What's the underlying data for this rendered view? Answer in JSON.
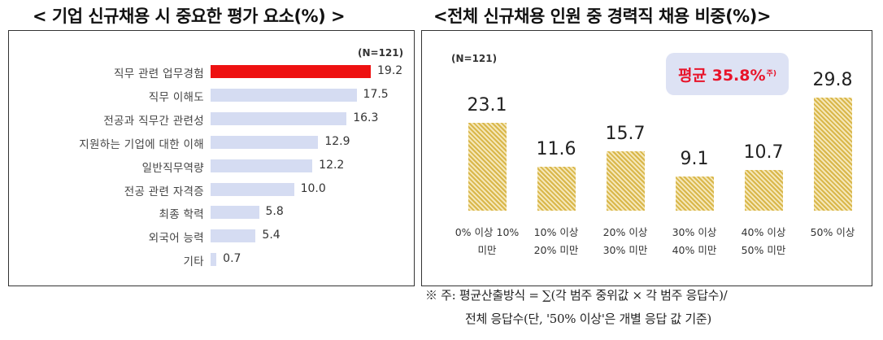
{
  "left_title": "< 기업 신규채용 시 중요한 평가 요소(%) >",
  "right_title": "<전체 신규채용 인원 중 경력직 채용 비중(%)>",
  "footnote": {
    "line1": "※ 주: 평균산출방식 = ∑(각 범주 중위값 × 각 범주 응답수)/",
    "line2": "전체 응답수(단, '50% 이상'은 개별 응답 값 기준)"
  },
  "chart_data": [
    {
      "type": "bar",
      "orientation": "horizontal",
      "title": "< 기업 신규채용 시 중요한 평가 요소(%) >",
      "note": "(N=121)",
      "categories": [
        "직무 관련 업무경험",
        "직무 이해도",
        "전공과 직무간 관련성",
        "지원하는 기업에 대한 이해",
        "일반직무역량",
        "전공 관련 자격증",
        "최종 학력",
        "외국어 능력",
        "기타"
      ],
      "values": [
        19.2,
        17.5,
        16.3,
        12.9,
        12.2,
        10.0,
        5.8,
        5.4,
        0.7
      ],
      "value_labels": [
        "19.2",
        "17.5",
        "16.3",
        "12.9",
        "12.2",
        "10.0",
        "5.8",
        "5.4",
        "0.7"
      ],
      "highlight_index": 0,
      "colors": {
        "highlight": "#ee1111",
        "default": "#d5dcf2"
      }
    },
    {
      "type": "bar",
      "orientation": "vertical",
      "title": "<전체 신규채용 인원 중 경력직 채용 비중(%)>",
      "note": "(N=121)",
      "average_label": "평균 35.8%",
      "average_sup": "주)",
      "categories": [
        [
          "0% 이상 10%",
          "미만"
        ],
        [
          "10% 이상",
          "20% 미만"
        ],
        [
          "20% 이상",
          "30% 미만"
        ],
        [
          "30% 이상",
          "40% 미만"
        ],
        [
          "40% 이상",
          "50% 미만"
        ],
        [
          "50% 이상",
          ""
        ]
      ],
      "values": [
        23.1,
        11.6,
        15.7,
        9.1,
        10.7,
        29.8
      ],
      "value_labels": [
        "23.1",
        "11.6",
        "15.7",
        "9.1",
        "10.7",
        "29.8"
      ],
      "colors": {
        "bar": "#d9b74a",
        "hatch": "#f5e7b8"
      }
    }
  ]
}
